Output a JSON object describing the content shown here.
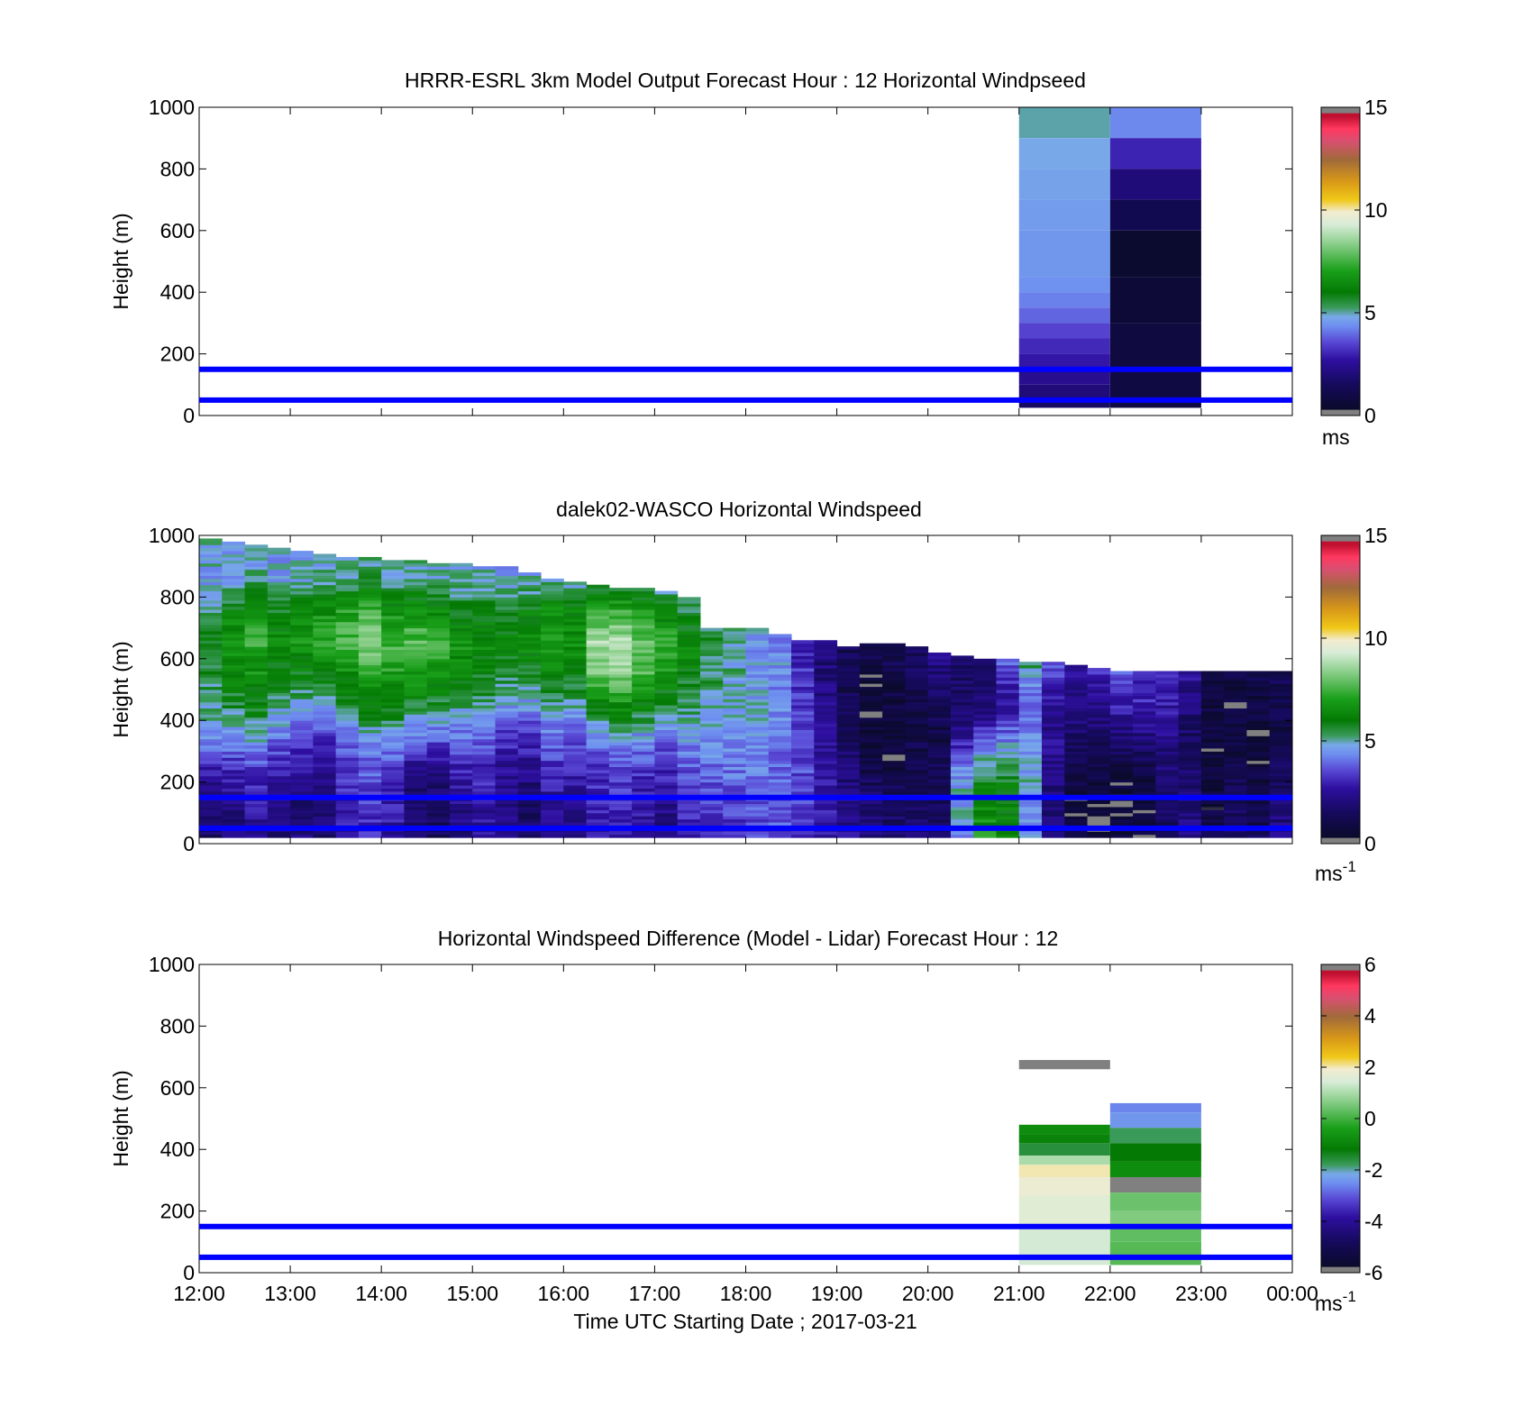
{
  "figure": {
    "xlabel": "Time UTC  Starting Date ; 2017-03-21",
    "x_ticks": [
      "12:00",
      "13:00",
      "14:00",
      "15:00",
      "16:00",
      "17:00",
      "18:00",
      "19:00",
      "20:00",
      "21:00",
      "22:00",
      "23:00",
      "00:00"
    ],
    "reference_lines_m": [
      50,
      150
    ],
    "reference_line_color": "#0000ff"
  },
  "chart_data": [
    {
      "type": "heatmap",
      "title": "HRRR-ESRL 3km Model Output   Forecast Hour : 12 Horizontal Windpseed",
      "ylabel": "Height (m)",
      "ylim": [
        0,
        1000
      ],
      "y_ticks": [
        "0",
        "200",
        "400",
        "600",
        "800",
        "1000"
      ],
      "xlim_hours": [
        0,
        12
      ],
      "colorbar": {
        "ticks": [
          "0",
          "5",
          "10",
          "15"
        ],
        "unit": "ms",
        "unit_exp": "",
        "range": [
          0,
          15
        ]
      },
      "x_hours": [
        9,
        10
      ],
      "columns": [
        {
          "x_start_hour": 9,
          "x_end_hour": 10,
          "z_bins_m": [
            [
              900,
              1000
            ],
            [
              800,
              900
            ],
            [
              700,
              800
            ],
            [
              600,
              700
            ],
            [
              450,
              600
            ],
            [
              400,
              450
            ],
            [
              350,
              400
            ],
            [
              300,
              350
            ],
            [
              250,
              300
            ],
            [
              200,
              250
            ],
            [
              150,
              200
            ],
            [
              100,
              150
            ],
            [
              50,
              100
            ],
            [
              25,
              50
            ]
          ],
          "speed_ms": [
            5.0,
            4.8,
            4.7,
            4.6,
            4.5,
            4.4,
            4.2,
            3.9,
            3.5,
            3.1,
            2.8,
            2.4,
            2.0,
            1.6
          ]
        },
        {
          "x_start_hour": 10,
          "x_end_hour": 11,
          "z_bins_m": [
            [
              900,
              1000
            ],
            [
              800,
              900
            ],
            [
              700,
              800
            ],
            [
              600,
              700
            ],
            [
              450,
              600
            ],
            [
              300,
              450
            ],
            [
              150,
              300
            ],
            [
              25,
              150
            ]
          ],
          "speed_ms": [
            4.3,
            3.0,
            2.0,
            1.2,
            0.4,
            0.6,
            0.8,
            0.9
          ]
        }
      ]
    },
    {
      "type": "heatmap",
      "title": "dalek02-WASCO  Horizontal Windspeed",
      "ylabel": "Height (m)",
      "ylim": [
        0,
        1000
      ],
      "y_ticks": [
        "0",
        "200",
        "400",
        "600",
        "800",
        "1000"
      ],
      "xlim_hours": [
        0,
        12
      ],
      "colorbar": {
        "ticks": [
          "0",
          "5",
          "10",
          "15"
        ],
        "unit": "ms",
        "unit_exp": "-1",
        "range": [
          0,
          15
        ]
      },
      "time_step_hours": 0.25,
      "top_heights_m": [
        990,
        980,
        970,
        960,
        950,
        940,
        930,
        925,
        920,
        915,
        910,
        905,
        900,
        895,
        880,
        860,
        850,
        840,
        830,
        830,
        820,
        800,
        700,
        700,
        700,
        680,
        660,
        660,
        640,
        650,
        650,
        640,
        620,
        610,
        600,
        600,
        590,
        590,
        580,
        570,
        560,
        560,
        560,
        560,
        560,
        560,
        560,
        560
      ],
      "profile_anchor_heights_m": [
        25,
        150,
        250,
        350,
        450,
        550,
        650,
        750,
        850,
        950
      ],
      "speed_profile_anchors_ms": [
        [
          1.6,
          2.0,
          3.0,
          4.5,
          5.2,
          5.5,
          5.8,
          5.0,
          4.6,
          4.8
        ],
        [
          2.0,
          2.4,
          3.2,
          4.6,
          5.6,
          6.2,
          6.8,
          6.0,
          4.6,
          4.8
        ],
        [
          2.4,
          2.8,
          3.6,
          4.8,
          6.0,
          6.6,
          7.4,
          6.6,
          5.0,
          4.6
        ],
        [
          1.8,
          2.2,
          3.0,
          4.2,
          5.2,
          6.0,
          6.6,
          5.8,
          4.6,
          4.6
        ],
        [
          2.0,
          2.0,
          2.6,
          3.8,
          5.0,
          6.0,
          6.8,
          6.2,
          4.8,
          4.8
        ],
        [
          1.8,
          2.0,
          2.4,
          3.4,
          5.0,
          6.2,
          7.2,
          6.6,
          5.0,
          4.8
        ],
        [
          2.6,
          3.0,
          3.4,
          4.2,
          5.4,
          6.6,
          7.8,
          7.0,
          5.2,
          5.0
        ],
        [
          3.0,
          3.4,
          3.8,
          4.8,
          6.2,
          7.4,
          8.4,
          7.4,
          5.6,
          5.0
        ],
        [
          2.6,
          3.0,
          3.6,
          4.8,
          6.2,
          7.0,
          7.6,
          6.6,
          5.0,
          4.8
        ],
        [
          1.6,
          1.8,
          2.6,
          4.2,
          5.8,
          7.0,
          7.8,
          6.8,
          5.2,
          4.8
        ],
        [
          1.4,
          1.6,
          2.4,
          4.0,
          5.6,
          6.8,
          7.4,
          6.4,
          5.0,
          4.8
        ],
        [
          2.0,
          2.4,
          3.0,
          4.2,
          5.2,
          6.2,
          6.8,
          6.0,
          4.8,
          4.6
        ],
        [
          2.4,
          2.8,
          3.2,
          4.0,
          5.2,
          6.0,
          6.4,
          5.8,
          4.8,
          4.6
        ],
        [
          2.0,
          2.2,
          2.6,
          3.4,
          4.6,
          5.6,
          6.2,
          5.6,
          4.6,
          4.4
        ],
        [
          1.6,
          1.8,
          2.4,
          3.2,
          4.6,
          5.8,
          6.6,
          6.0,
          4.8,
          4.6
        ],
        [
          2.0,
          2.6,
          3.2,
          4.0,
          5.2,
          6.4,
          7.2,
          6.6,
          5.0,
          4.6
        ],
        [
          2.0,
          2.4,
          3.0,
          3.8,
          5.0,
          6.0,
          6.8,
          6.2,
          4.8,
          4.6
        ],
        [
          2.6,
          3.0,
          3.4,
          4.4,
          6.2,
          8.0,
          8.6,
          7.2,
          5.2,
          4.8
        ],
        [
          2.8,
          3.2,
          3.6,
          4.8,
          6.6,
          8.4,
          8.8,
          7.4,
          5.2,
          4.8
        ],
        [
          2.4,
          2.8,
          3.4,
          4.6,
          6.2,
          7.6,
          8.0,
          6.8,
          5.0,
          4.6
        ],
        [
          2.0,
          2.6,
          3.2,
          4.2,
          5.6,
          6.8,
          7.2,
          6.2,
          4.8,
          4.6
        ],
        [
          2.8,
          3.2,
          3.8,
          4.6,
          5.4,
          6.0,
          6.4,
          5.6,
          4.8,
          4.6
        ],
        [
          3.0,
          3.4,
          4.0,
          4.6,
          5.0,
          5.4,
          5.6,
          5.2,
          4.8,
          4.6
        ],
        [
          3.2,
          3.6,
          4.2,
          4.6,
          4.8,
          5.0,
          5.0,
          4.8,
          4.6,
          4.6
        ],
        [
          3.4,
          3.8,
          4.2,
          4.6,
          4.6,
          4.6,
          4.6,
          4.6,
          4.6,
          4.6
        ],
        [
          3.6,
          3.8,
          4.0,
          4.2,
          4.4,
          4.4,
          4.4,
          4.4,
          4.4,
          4.4
        ],
        [
          3.2,
          3.4,
          3.6,
          3.6,
          3.4,
          3.2,
          3.0,
          3.0,
          3.0,
          3.0
        ],
        [
          2.8,
          2.8,
          2.6,
          2.4,
          2.2,
          2.0,
          2.0,
          2.0,
          2.0,
          2.0
        ],
        [
          2.4,
          2.2,
          1.8,
          1.4,
          1.2,
          1.2,
          1.4,
          1.4,
          1.4,
          1.4
        ],
        [
          2.0,
          1.6,
          1.0,
          0.6,
          0.6,
          0.8,
          1.2,
          1.2,
          1.2,
          1.2
        ],
        [
          1.8,
          1.4,
          0.8,
          0.6,
          0.8,
          1.0,
          1.4,
          1.4,
          1.4,
          1.4
        ],
        [
          1.8,
          1.6,
          1.2,
          1.0,
          1.2,
          1.4,
          1.6,
          1.6,
          1.6,
          1.6
        ],
        [
          1.6,
          1.4,
          1.2,
          1.0,
          1.4,
          2.0,
          2.6,
          2.6,
          2.6,
          2.6
        ],
        [
          4.4,
          4.8,
          4.2,
          2.6,
          1.6,
          1.6,
          2.0,
          2.0,
          2.0,
          2.0
        ],
        [
          6.8,
          6.4,
          5.2,
          3.4,
          1.8,
          1.6,
          2.4,
          2.4,
          2.4,
          2.4
        ],
        [
          6.0,
          6.2,
          5.4,
          4.0,
          2.6,
          3.2,
          5.0,
          5.0,
          5.0,
          5.0
        ],
        [
          4.4,
          4.6,
          4.8,
          4.6,
          3.4,
          4.8,
          6.6,
          9.6,
          9.2,
          9.2
        ],
        [
          2.2,
          2.0,
          2.2,
          2.4,
          2.4,
          3.6,
          5.0,
          9.0,
          9.6,
          9.6
        ],
        [
          0.6,
          0.8,
          1.2,
          1.8,
          2.0,
          2.4,
          3.0,
          3.0,
          3.0,
          3.0
        ],
        [
          0.4,
          0.6,
          1.0,
          1.6,
          2.2,
          3.0,
          4.2,
          12.4,
          12.4,
          12.4
        ],
        [
          0.8,
          0.6,
          1.0,
          2.0,
          3.0,
          3.6,
          4.0,
          4.0,
          4.0,
          4.0
        ],
        [
          0.6,
          0.6,
          1.2,
          2.2,
          3.0,
          3.2,
          3.6,
          3.6,
          3.6,
          3.6
        ],
        [
          1.4,
          1.6,
          2.0,
          2.4,
          2.8,
          3.2,
          3.4,
          3.4,
          3.4,
          3.4
        ],
        [
          2.2,
          2.0,
          1.8,
          1.6,
          2.0,
          2.6,
          3.0,
          3.0,
          3.0,
          3.0
        ],
        [
          1.0,
          0.8,
          0.6,
          0.6,
          0.8,
          1.2,
          1.6,
          1.6,
          1.6,
          1.6
        ],
        [
          1.8,
          1.4,
          1.0,
          0.8,
          0.8,
          1.0,
          1.2,
          1.2,
          1.2,
          1.2
        ],
        [
          1.2,
          1.0,
          0.8,
          0.6,
          0.8,
          1.0,
          1.2,
          1.2,
          1.2,
          1.2
        ],
        [
          2.2,
          1.8,
          1.4,
          1.0,
          1.0,
          1.2,
          1.4,
          1.4,
          1.4,
          1.4
        ]
      ]
    },
    {
      "type": "heatmap",
      "title": "Horizontal Windspeed Difference (Model - Lidar) Forecast Hour : 12",
      "ylabel": "Height (m)",
      "ylim": [
        0,
        1000
      ],
      "y_ticks": [
        "0",
        "200",
        "400",
        "600",
        "800",
        "1000"
      ],
      "xlim_hours": [
        0,
        12
      ],
      "colorbar": {
        "ticks": [
          "-6",
          "-4",
          "-2",
          "0",
          "2",
          "4",
          "6"
        ],
        "unit": "ms",
        "unit_exp": "-1",
        "range": [
          -6,
          6
        ]
      },
      "columns": [
        {
          "x_start_hour": 9,
          "x_end_hour": 10,
          "z_bins_m": [
            [
              660,
              690
            ],
            [
              450,
              480
            ],
            [
              420,
              450
            ],
            [
              380,
              420
            ],
            [
              350,
              380
            ],
            [
              310,
              350
            ],
            [
              250,
              310
            ],
            [
              150,
              250
            ],
            [
              25,
              150
            ]
          ],
          "diff_ms": [
            7.0,
            -0.8,
            -1.0,
            -1.6,
            1.0,
            2.0,
            1.8,
            1.6,
            1.4
          ]
        },
        {
          "x_start_hour": 10,
          "x_end_hour": 11,
          "z_bins_m": [
            [
              520,
              550
            ],
            [
              470,
              520
            ],
            [
              420,
              470
            ],
            [
              360,
              420
            ],
            [
              310,
              360
            ],
            [
              260,
              310
            ],
            [
              200,
              260
            ],
            [
              150,
              200
            ],
            [
              100,
              150
            ],
            [
              25,
              100
            ]
          ],
          "diff_ms": [
            -2.6,
            -2.4,
            -1.8,
            -1.2,
            -0.8,
            7.0,
            0.4,
            0.6,
            0.3,
            0.2
          ]
        }
      ]
    }
  ]
}
